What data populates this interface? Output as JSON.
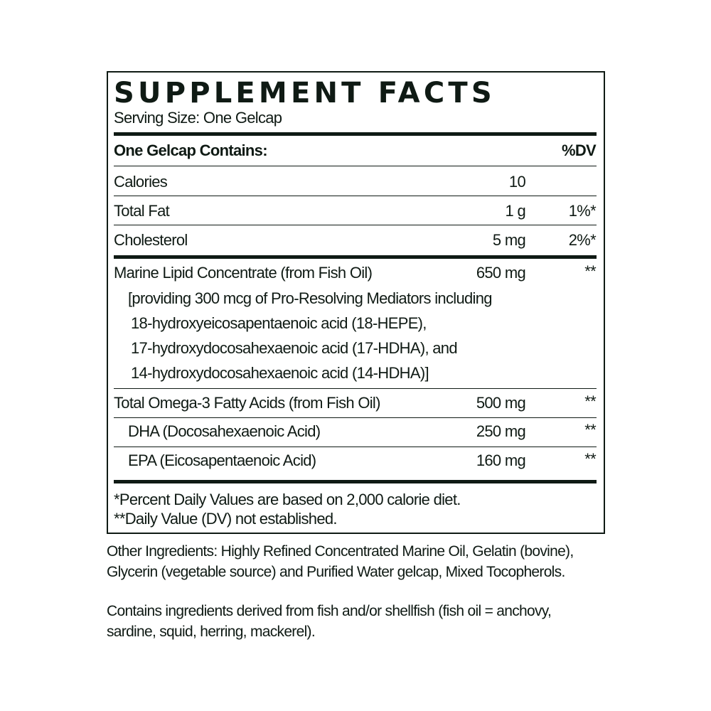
{
  "title": "SUPPLEMENT FACTS",
  "serving_size": "Serving Size: One Gelcap",
  "header": {
    "contains": "One Gelcap Contains:",
    "dv": "%DV"
  },
  "rows": [
    {
      "name": "Calories",
      "amount": "10",
      "dv": ""
    },
    {
      "name": "Total Fat",
      "amount": "1 g",
      "dv": "1%*"
    },
    {
      "name": "Cholesterol",
      "amount": "5 mg",
      "dv": "2%*"
    },
    {
      "name": "Marine Lipid Concentrate (from Fish Oil)",
      "amount": "650 mg",
      "dv": "**"
    },
    {
      "name": "Total Omega-3 Fatty Acids (from Fish Oil)",
      "amount": "500 mg",
      "dv": "**"
    },
    {
      "name": "DHA (Docosahexaenoic Acid)",
      "amount": "250 mg",
      "dv": "**"
    },
    {
      "name": "EPA (Eicosapentaenoic Acid)",
      "amount": "160 mg",
      "dv": "**"
    }
  ],
  "marine_details": [
    "[providing 300 mcg of Pro-Resolving Mediators including",
    "18-hydroxyeicosapentaenoic acid (18-HEPE),",
    "17-hydroxydocosahexaenoic acid (17-HDHA), and",
    "14-hydroxydocosahexaenoic acid (14-HDHA)]"
  ],
  "footnotes": [
    "*Percent Daily Values are based on 2,000 calorie diet.",
    "**Daily Value (DV) not established."
  ],
  "other_ingredients": [
    "Other Ingredients: Highly Refined Concentrated Marine Oil, Gelatin (bovine),",
    "Glycerin (vegetable source) and Purified Water gelcap, Mixed Tocopherols."
  ],
  "allergen": [
    "Contains ingredients derived from fish and/or shellfish (fish oil = anchovy,",
    "sardine, squid, herring, mackerel)."
  ],
  "colors": {
    "ink": "#0f1a14",
    "background": "#ffffff"
  }
}
